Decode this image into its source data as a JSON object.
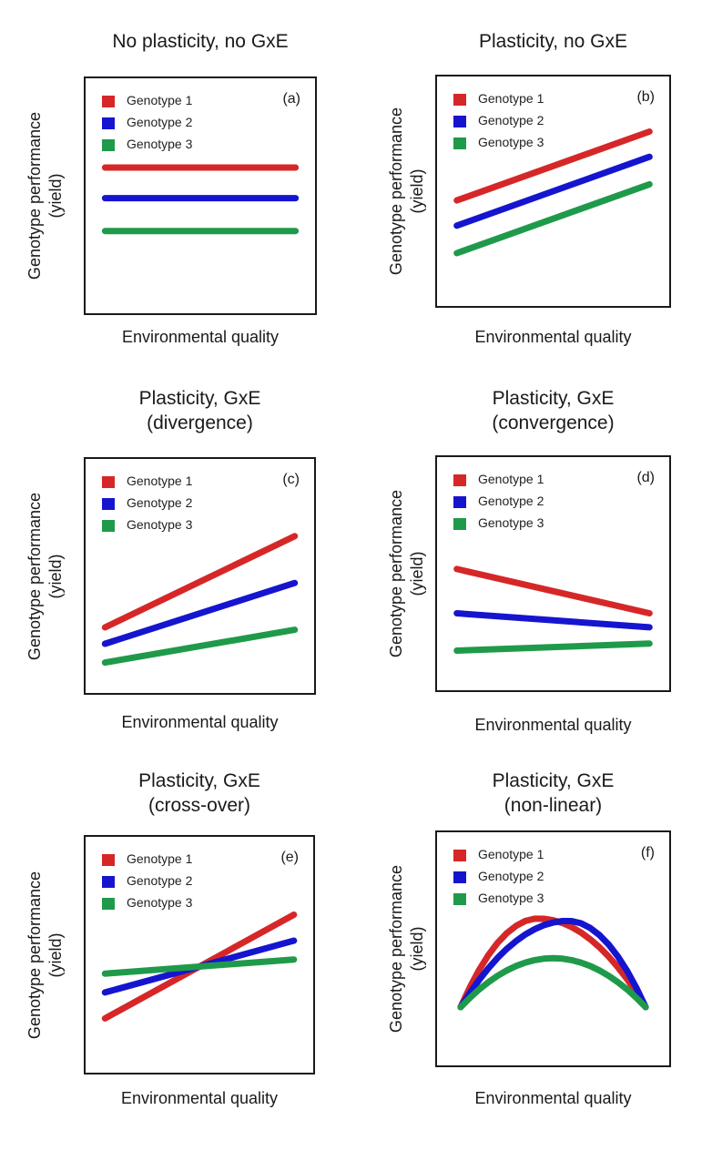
{
  "chart_data": [
    {
      "type": "line",
      "title": "No plasticity, no GxE",
      "panel_letter": "(a)",
      "xlabel": "Environmental quality",
      "ylabel_line1": "Genotype performance",
      "ylabel_line2": "(yield)",
      "x": [
        0,
        1
      ],
      "series": [
        {
          "name": "Genotype 1",
          "color": "#d62728",
          "values": [
            0.62,
            0.62
          ]
        },
        {
          "name": "Genotype 2",
          "color": "#1515d0",
          "values": [
            0.49,
            0.49
          ]
        },
        {
          "name": "Genotype 3",
          "color": "#1f9a4a",
          "values": [
            0.35,
            0.35
          ]
        }
      ]
    },
    {
      "type": "line",
      "title": "Plasticity, no GxE",
      "panel_letter": "(b)",
      "xlabel": "Environmental quality",
      "ylabel_line1": "Genotype performance",
      "ylabel_line2": "(yield)",
      "x": [
        0,
        1
      ],
      "series": [
        {
          "name": "Genotype 1",
          "color": "#d62728",
          "values": [
            0.46,
            0.76
          ]
        },
        {
          "name": "Genotype 2",
          "color": "#1515d0",
          "values": [
            0.35,
            0.65
          ]
        },
        {
          "name": "Genotype 3",
          "color": "#1f9a4a",
          "values": [
            0.23,
            0.53
          ]
        }
      ]
    },
    {
      "type": "line",
      "title": "Plasticity, GxE",
      "subtitle": "(divergence)",
      "panel_letter": "(c)",
      "xlabel": "Environmental quality",
      "ylabel_line1": "Genotype performance",
      "ylabel_line2": "(yield)",
      "x": [
        0,
        1
      ],
      "series": [
        {
          "name": "Genotype 1",
          "color": "#d62728",
          "values": [
            0.28,
            0.67
          ]
        },
        {
          "name": "Genotype 2",
          "color": "#1515d0",
          "values": [
            0.21,
            0.47
          ]
        },
        {
          "name": "Genotype 3",
          "color": "#1f9a4a",
          "values": [
            0.13,
            0.27
          ]
        }
      ]
    },
    {
      "type": "line",
      "title": "Plasticity, GxE",
      "subtitle": "(convergence)",
      "panel_letter": "(d)",
      "xlabel": "Environmental quality",
      "ylabel_line1": "Genotype performance",
      "ylabel_line2": "(yield)",
      "x": [
        0,
        1
      ],
      "series": [
        {
          "name": "Genotype 1",
          "color": "#d62728",
          "values": [
            0.52,
            0.33
          ]
        },
        {
          "name": "Genotype 2",
          "color": "#1515d0",
          "values": [
            0.33,
            0.27
          ]
        },
        {
          "name": "Genotype 3",
          "color": "#1f9a4a",
          "values": [
            0.17,
            0.2
          ]
        }
      ]
    },
    {
      "type": "line",
      "title": "Plasticity, GxE",
      "subtitle": "(cross-over)",
      "panel_letter": "(e)",
      "xlabel": "Environmental quality",
      "ylabel_line1": "Genotype performance",
      "ylabel_line2": "(yield)",
      "x": [
        0,
        1
      ],
      "series": [
        {
          "name": "Genotype 1",
          "color": "#d62728",
          "values": [
            0.23,
            0.67
          ]
        },
        {
          "name": "Genotype 2",
          "color": "#1515d0",
          "values": [
            0.34,
            0.56
          ]
        },
        {
          "name": "Genotype 3",
          "color": "#1f9a4a",
          "values": [
            0.42,
            0.48
          ]
        }
      ]
    },
    {
      "type": "line",
      "title": "Plasticity, GxE",
      "subtitle": "(non-linear)",
      "panel_letter": "(f)",
      "xlabel": "Environmental quality",
      "ylabel_line1": "Genotype performance",
      "ylabel_line2": "(yield)",
      "x": [
        0,
        0.05,
        0.1,
        0.15,
        0.2,
        0.25,
        0.3,
        0.35,
        0.4,
        0.45,
        0.5,
        0.55,
        0.6,
        0.65,
        0.7,
        0.75,
        0.8,
        0.85,
        0.9,
        0.95,
        1
      ],
      "series": [
        {
          "name": "Genotype 1",
          "color": "#d62728",
          "peak_x": 0.42,
          "peak": 0.63,
          "base": 0.25
        },
        {
          "name": "Genotype 2",
          "color": "#1515d0",
          "peak_x": 0.58,
          "peak": 0.62,
          "base": 0.25
        },
        {
          "name": "Genotype 3",
          "color": "#1f9a4a",
          "peak_x": 0.5,
          "peak": 0.46,
          "base": 0.25
        }
      ]
    }
  ]
}
